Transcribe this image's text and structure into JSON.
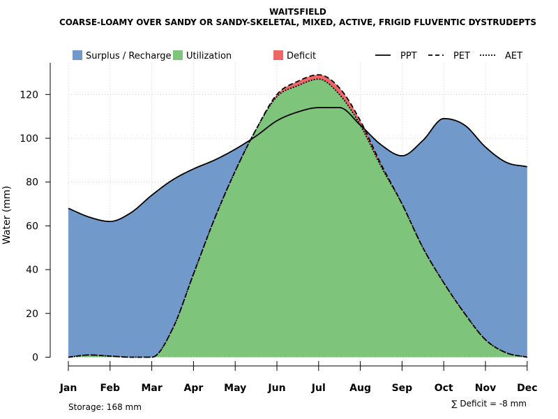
{
  "chart_data": {
    "type": "area",
    "title": "WAITSFIELD",
    "subtitle": "COARSE-LOAMY OVER SANDY OR SANDY-SKELETAL, MIXED, ACTIVE, FRIGID FLUVENTIC DYSTRUDEPTS",
    "ylabel": "Water (mm)",
    "xlabel": "",
    "ylim": [
      0,
      132
    ],
    "yticks": [
      0,
      20,
      40,
      60,
      80,
      100,
      120
    ],
    "grid": true,
    "legend_position": "top",
    "categories": [
      "Jan",
      "Feb",
      "Mar",
      "Apr",
      "May",
      "Jun",
      "Jul",
      "Aug",
      "Sep",
      "Oct",
      "Nov",
      "Dec"
    ],
    "x": [
      1,
      1.5,
      2,
      2.5,
      3,
      3.5,
      4,
      4.5,
      5,
      5.5,
      6,
      6.5,
      7,
      7.5,
      8,
      8.5,
      9,
      9.5,
      10,
      10.5,
      11,
      11.5,
      12
    ],
    "series": [
      {
        "name": "PPT",
        "values": [
          68,
          64,
          62,
          66,
          74,
          81,
          86,
          90,
          95,
          101,
          108,
          112,
          114,
          114,
          106,
          97,
          92,
          99,
          109,
          106,
          96,
          89,
          87
        ]
      },
      {
        "name": "PET",
        "values": [
          0,
          1,
          0.5,
          0,
          0,
          13,
          38,
          63,
          85,
          104,
          120,
          126,
          129,
          123,
          108,
          88,
          70,
          50,
          34,
          20,
          8,
          2,
          0
        ]
      },
      {
        "name": "AET",
        "values": [
          0,
          1,
          0.5,
          0,
          0,
          13,
          38,
          63,
          85,
          104,
          119,
          124,
          127,
          120,
          106,
          87,
          70,
          50,
          34,
          20,
          8,
          2,
          0
        ]
      }
    ],
    "legend": [
      {
        "label": "Surplus / Recharge",
        "kind": "fill",
        "color": "#7199c9"
      },
      {
        "label": "Utilization",
        "kind": "fill",
        "color": "#7fc47b"
      },
      {
        "label": "Deficit",
        "kind": "fill",
        "color": "#ee6666"
      },
      {
        "label": "PPT",
        "kind": "line",
        "dash": "solid"
      },
      {
        "label": "PET",
        "kind": "line",
        "dash": "dashed"
      },
      {
        "label": "AET",
        "kind": "line",
        "dash": "dotted"
      }
    ],
    "annotations": {
      "storage": "Storage: 168 mm",
      "deficit": "∑ Deficit = -8 mm"
    }
  },
  "colors": {
    "surplus": "#7199c9",
    "utilization": "#7fc47b",
    "deficit": "#ee6666",
    "grid": "#cccccc",
    "axis": "#000000"
  }
}
